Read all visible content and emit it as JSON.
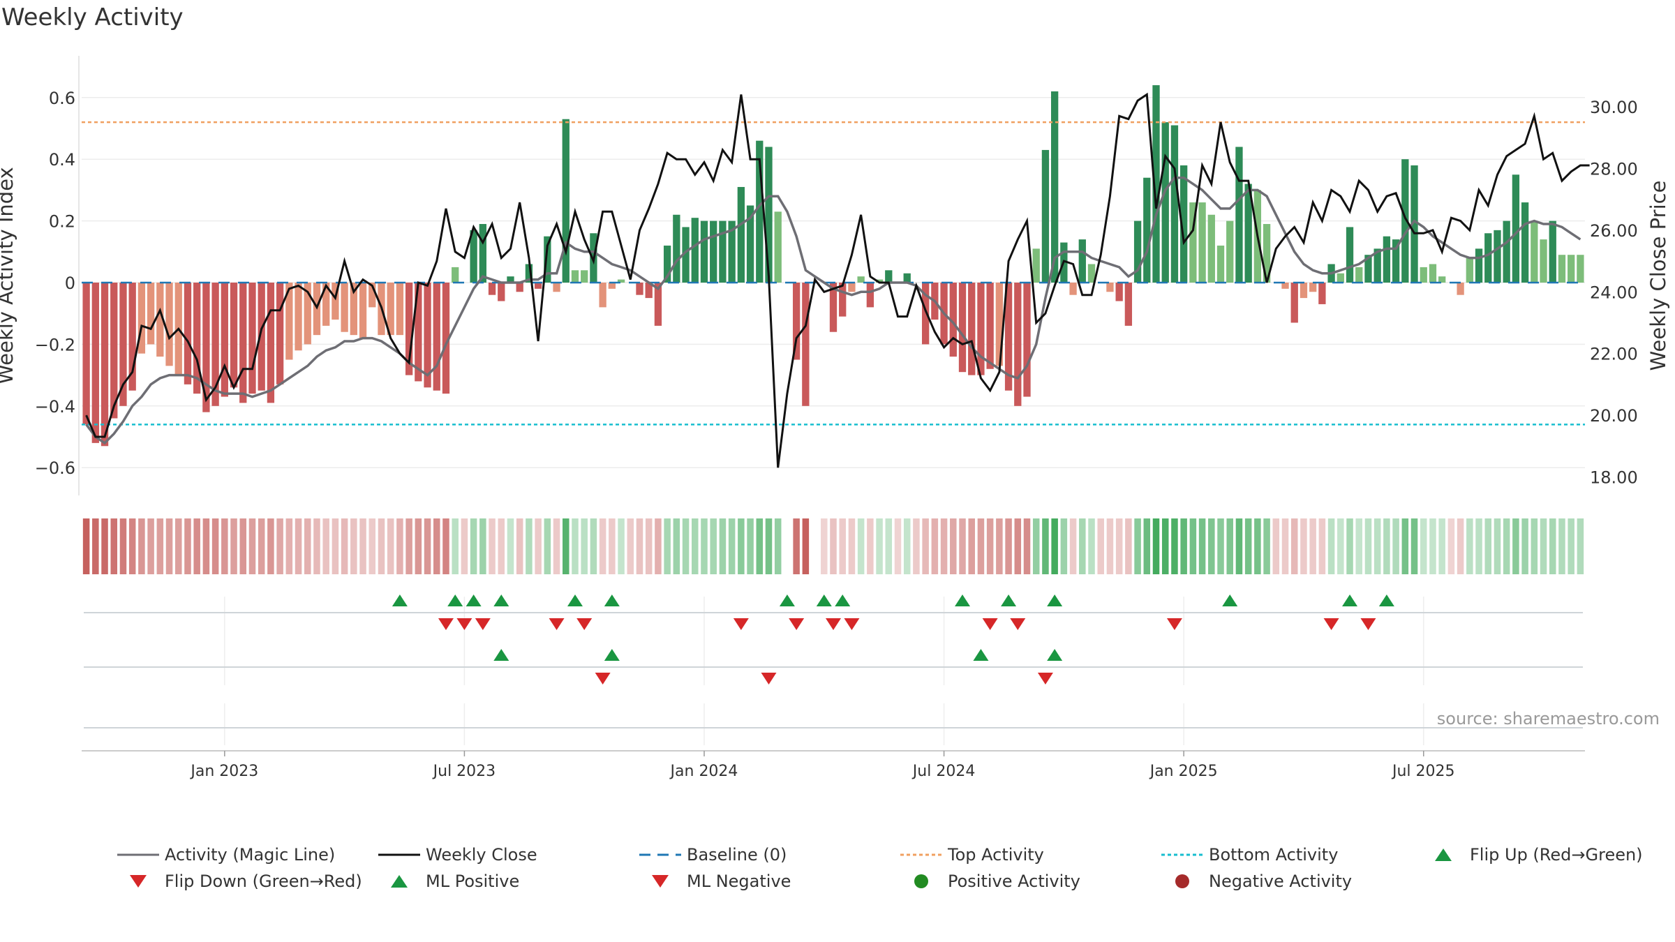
{
  "chart_data": {
    "type": "line",
    "title": "Weekly Activity",
    "ylabel": "Weekly Activity Index",
    "y2label": "Weekly Close Price",
    "ylim": [
      -0.69,
      0.69
    ],
    "y2lim": [
      17.4,
      31.2
    ],
    "y_ticks": [
      {
        "v": 0.6,
        "label": "0.6"
      },
      {
        "v": 0.4,
        "label": "0.4"
      },
      {
        "v": 0.2,
        "label": "0.2"
      },
      {
        "v": 0,
        "label": "0"
      },
      {
        "v": -0.2,
        "label": "−0.2"
      },
      {
        "v": -0.4,
        "label": "−0.4"
      },
      {
        "v": -0.6,
        "label": "−0.6"
      }
    ],
    "y2_ticks": [
      {
        "v": 30,
        "label": "30.00"
      },
      {
        "v": 28,
        "label": "28.00"
      },
      {
        "v": 26,
        "label": "26.00"
      },
      {
        "v": 24,
        "label": "24.00"
      },
      {
        "v": 22,
        "label": "22.00"
      },
      {
        "v": 20,
        "label": "20.00"
      },
      {
        "v": 18,
        "label": "18.00"
      }
    ],
    "x_ticks": [
      {
        "week": 15,
        "label": "Jan 2023"
      },
      {
        "week": 41,
        "label": "Jul 2023"
      },
      {
        "week": 67,
        "label": "Jan 2024"
      },
      {
        "week": 93,
        "label": "Jul 2024"
      },
      {
        "week": 119,
        "label": "Jan 2025"
      },
      {
        "week": 145,
        "label": "Jul 2025"
      }
    ],
    "top_activity": 0.52,
    "bottom_activity": -0.46,
    "baseline": 0,
    "activity": [
      -0.46,
      -0.52,
      -0.53,
      -0.44,
      -0.4,
      -0.35,
      -0.23,
      -0.2,
      -0.24,
      -0.27,
      -0.3,
      -0.33,
      -0.36,
      -0.42,
      -0.4,
      -0.37,
      -0.34,
      -0.39,
      -0.36,
      -0.35,
      -0.39,
      -0.33,
      -0.25,
      -0.22,
      -0.2,
      -0.17,
      -0.14,
      -0.12,
      -0.16,
      -0.17,
      -0.18,
      -0.08,
      -0.17,
      -0.17,
      -0.17,
      -0.3,
      -0.32,
      -0.34,
      -0.35,
      -0.36,
      0.05,
      0.0,
      0.17,
      0.19,
      -0.04,
      -0.06,
      0.02,
      -0.03,
      0.06,
      -0.02,
      0.15,
      -0.03,
      0.53,
      0.04,
      0.04,
      0.16,
      -0.08,
      -0.02,
      0.01,
      0.0,
      -0.04,
      -0.05,
      -0.14,
      0.12,
      0.22,
      0.18,
      0.21,
      0.2,
      0.2,
      0.2,
      0.2,
      0.31,
      0.25,
      0.46,
      0.44,
      0.23,
      0.0,
      -0.25,
      -0.4,
      0.0,
      0.0,
      -0.16,
      -0.11,
      -0.03,
      0.02,
      -0.08,
      0.01,
      0.04,
      0.0,
      0.03,
      0.0,
      -0.2,
      -0.12,
      -0.2,
      -0.24,
      -0.29,
      -0.3,
      -0.3,
      -0.28,
      -0.27,
      -0.35,
      -0.4,
      -0.37,
      0.11,
      0.43,
      0.62,
      0.13,
      -0.04,
      0.14,
      0.06,
      0.0,
      -0.03,
      -0.06,
      -0.14,
      0.2,
      0.34,
      0.64,
      0.52,
      0.51,
      0.38,
      0.26,
      0.26,
      0.22,
      0.12,
      0.2,
      0.44,
      0.32,
      0.3,
      0.19,
      0.0,
      -0.02,
      -0.13,
      -0.05,
      -0.03,
      -0.07,
      0.06,
      0.03,
      0.18,
      0.05,
      0.09,
      0.11,
      0.15,
      0.14,
      0.4,
      0.38,
      0.05,
      0.06,
      0.02,
      0.0,
      -0.04,
      0.08,
      0.11,
      0.16,
      0.17,
      0.2,
      0.35,
      0.26,
      0.2,
      0.14,
      0.2,
      0.09,
      0.09,
      0.09
    ],
    "magic_line": [
      -0.46,
      -0.5,
      -0.52,
      -0.49,
      -0.45,
      -0.4,
      -0.37,
      -0.33,
      -0.31,
      -0.3,
      -0.3,
      -0.3,
      -0.31,
      -0.33,
      -0.35,
      -0.36,
      -0.36,
      -0.36,
      -0.37,
      -0.36,
      -0.35,
      -0.33,
      -0.31,
      -0.29,
      -0.27,
      -0.24,
      -0.22,
      -0.21,
      -0.19,
      -0.19,
      -0.18,
      -0.18,
      -0.19,
      -0.21,
      -0.23,
      -0.26,
      -0.28,
      -0.3,
      -0.27,
      -0.2,
      -0.14,
      -0.08,
      -0.02,
      0.02,
      0.01,
      0.0,
      0.0,
      0.0,
      0.01,
      0.01,
      0.03,
      0.03,
      0.13,
      0.11,
      0.1,
      0.1,
      0.08,
      0.06,
      0.05,
      0.04,
      0.02,
      0.0,
      -0.02,
      0.02,
      0.07,
      0.1,
      0.12,
      0.14,
      0.15,
      0.16,
      0.17,
      0.19,
      0.21,
      0.25,
      0.28,
      0.28,
      0.23,
      0.15,
      0.04,
      0.02,
      0.0,
      -0.02,
      -0.03,
      -0.04,
      -0.03,
      -0.03,
      -0.02,
      0.0,
      0.0,
      0.0,
      -0.01,
      -0.04,
      -0.06,
      -0.1,
      -0.13,
      -0.17,
      -0.21,
      -0.24,
      -0.26,
      -0.28,
      -0.3,
      -0.31,
      -0.27,
      -0.2,
      -0.05,
      0.08,
      0.1,
      0.1,
      0.1,
      0.08,
      0.07,
      0.06,
      0.05,
      0.02,
      0.04,
      0.1,
      0.22,
      0.3,
      0.34,
      0.34,
      0.32,
      0.3,
      0.27,
      0.24,
      0.24,
      0.27,
      0.3,
      0.3,
      0.28,
      0.22,
      0.16,
      0.1,
      0.06,
      0.04,
      0.03,
      0.03,
      0.04,
      0.05,
      0.06,
      0.08,
      0.1,
      0.11,
      0.11,
      0.16,
      0.2,
      0.18,
      0.15,
      0.13,
      0.11,
      0.09,
      0.08,
      0.08,
      0.09,
      0.11,
      0.13,
      0.16,
      0.19,
      0.2,
      0.19,
      0.19,
      0.18,
      0.16,
      0.14
    ],
    "weekly_close": [
      20.0,
      19.3,
      19.3,
      20.3,
      21.0,
      21.4,
      22.9,
      22.8,
      23.4,
      22.5,
      22.8,
      22.4,
      21.8,
      20.5,
      20.9,
      21.6,
      20.9,
      21.5,
      21.5,
      22.8,
      23.4,
      23.4,
      24.1,
      24.2,
      24.0,
      23.5,
      24.2,
      23.8,
      25.0,
      24.0,
      24.4,
      24.2,
      23.5,
      22.5,
      22.0,
      21.7,
      24.3,
      24.2,
      25.0,
      26.7,
      25.3,
      25.1,
      26.1,
      25.6,
      26.2,
      25.1,
      25.4,
      26.9,
      25.1,
      22.4,
      25.5,
      26.2,
      25.3,
      26.6,
      25.7,
      25.0,
      26.6,
      26.6,
      25.5,
      24.4,
      26.0,
      26.7,
      27.5,
      28.5,
      28.3,
      28.3,
      27.8,
      28.2,
      27.6,
      28.6,
      28.2,
      30.4,
      28.3,
      28.3,
      24.5,
      18.3,
      20.7,
      22.5,
      22.9,
      24.4,
      24.0,
      24.1,
      24.2,
      25.2,
      26.5,
      24.5,
      24.3,
      24.3,
      23.2,
      23.2,
      24.2,
      23.4,
      22.7,
      22.2,
      22.5,
      22.3,
      22.4,
      21.2,
      20.8,
      21.4,
      25.0,
      25.7,
      26.3,
      23.0,
      23.3,
      24.2,
      25.0,
      24.9,
      23.9,
      23.9,
      25.2,
      27.1,
      29.7,
      29.6,
      30.2,
      30.4,
      26.7,
      28.4,
      28.0,
      25.6,
      26.0,
      28.1,
      27.5,
      29.5,
      28.2,
      27.6,
      27.6,
      25.8,
      24.3,
      25.4,
      25.8,
      26.1,
      25.6,
      26.9,
      26.3,
      27.3,
      27.1,
      26.6,
      27.6,
      27.3,
      26.6,
      27.1,
      27.2,
      26.4,
      25.9,
      25.9,
      26.0,
      25.3,
      26.4,
      26.3,
      26.0,
      27.3,
      26.8,
      27.8,
      28.4,
      28.6,
      28.8,
      29.7,
      28.3,
      28.5,
      27.6,
      27.9,
      28.1,
      28.1
    ],
    "color_strip_alpha": [
      0.9,
      0.85,
      0.85,
      0.8,
      0.75,
      0.7,
      0.6,
      0.55,
      0.55,
      0.55,
      0.55,
      0.6,
      0.65,
      0.65,
      0.65,
      0.6,
      0.55,
      0.6,
      0.55,
      0.55,
      0.6,
      0.5,
      0.45,
      0.45,
      0.45,
      0.4,
      0.35,
      0.35,
      0.4,
      0.35,
      0.35,
      0.3,
      0.35,
      0.35,
      0.45,
      0.55,
      0.6,
      0.6,
      0.65,
      0.7,
      0.35,
      0.3,
      0.45,
      0.5,
      0.3,
      0.3,
      0.3,
      0.35,
      0.4,
      0.3,
      0.45,
      0.3,
      0.85,
      0.35,
      0.35,
      0.4,
      0.3,
      0.3,
      0.3,
      0.3,
      0.35,
      0.35,
      0.45,
      0.45,
      0.5,
      0.45,
      0.45,
      0.45,
      0.45,
      0.5,
      0.5,
      0.6,
      0.55,
      0.7,
      0.7,
      0.55,
      0.0,
      0.8,
      0.9,
      0.0,
      0.25,
      0.35,
      0.3,
      0.3,
      0.3,
      0.3,
      0.3,
      0.3,
      0.25,
      0.3,
      0.3,
      0.4,
      0.45,
      0.45,
      0.5,
      0.5,
      0.55,
      0.55,
      0.55,
      0.55,
      0.6,
      0.65,
      0.65,
      0.55,
      0.8,
      0.95,
      0.5,
      0.3,
      0.45,
      0.35,
      0.3,
      0.3,
      0.3,
      0.35,
      0.6,
      0.75,
      0.95,
      0.9,
      0.9,
      0.8,
      0.7,
      0.7,
      0.65,
      0.6,
      0.65,
      0.8,
      0.7,
      0.7,
      0.6,
      0.3,
      0.3,
      0.4,
      0.3,
      0.3,
      0.3,
      0.35,
      0.3,
      0.45,
      0.3,
      0.35,
      0.35,
      0.4,
      0.4,
      0.7,
      0.7,
      0.3,
      0.3,
      0.3,
      0.25,
      0.3,
      0.35,
      0.35,
      0.4,
      0.4,
      0.45,
      0.6,
      0.5,
      0.45,
      0.4,
      0.45,
      0.4,
      0.4,
      0.4
    ],
    "flip_up_weeks": [
      34,
      40,
      42,
      45,
      53,
      57,
      76,
      80,
      82,
      95,
      100,
      105,
      124,
      137,
      141
    ],
    "flip_down_weeks": [
      39,
      41,
      43,
      51,
      54,
      71,
      77,
      81,
      83,
      98,
      101,
      118,
      135,
      139
    ],
    "ml_positive_weeks": [
      45,
      57,
      97,
      105
    ],
    "ml_negative_weeks": [
      56,
      74,
      104
    ],
    "source": "source: sharemaestro.com",
    "legend": [
      {
        "key": "magic",
        "label": "Activity (Magic Line)"
      },
      {
        "key": "close",
        "label": "Weekly Close"
      },
      {
        "key": "baseline",
        "label": "Baseline (0)"
      },
      {
        "key": "top",
        "label": "Top Activity"
      },
      {
        "key": "bottom",
        "label": "Bottom Activity"
      },
      {
        "key": "flipup",
        "label": "Flip Up (Red→Green)"
      },
      {
        "key": "flipdown",
        "label": "Flip Down (Green→Red)"
      },
      {
        "key": "mlpos",
        "label": "ML Positive"
      },
      {
        "key": "mlneg",
        "label": "ML Negative"
      },
      {
        "key": "posact",
        "label": "Positive Activity"
      },
      {
        "key": "negact",
        "label": "Negative Activity"
      }
    ]
  },
  "colors": {
    "strong_green": "#2e8b57",
    "light_green": "#7dbd7a",
    "strong_red": "#c9595a",
    "light_red": "#e3937a",
    "magic_line": "#6e6e74",
    "close": "#111111",
    "baseline": "#1f77b4",
    "top": "#f0a060",
    "bottom": "#17becf",
    "flip_up": "#1a9641",
    "flip_down": "#d62728",
    "pos_dot": "#228b22",
    "neg_dot": "#a52a2a"
  }
}
